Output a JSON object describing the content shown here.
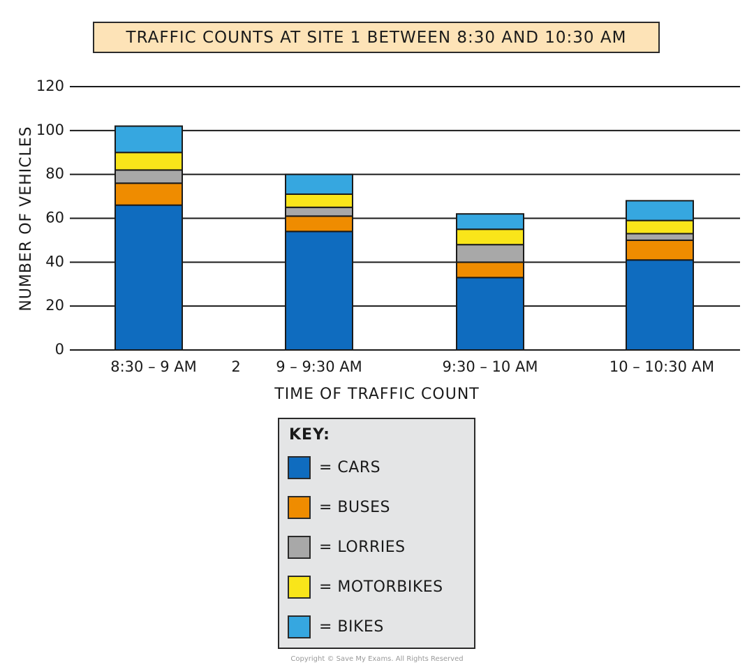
{
  "chart_data": {
    "type": "bar",
    "stacked": true,
    "title": "TRAFFIC COUNTS AT SITE 1 BETWEEN 8:30 AND 10:30 AM",
    "xlabel": "TIME OF TRAFFIC COUNT",
    "ylabel": "NUMBER OF VEHICLES",
    "ylim": [
      0,
      120
    ],
    "yticks": [
      0,
      20,
      40,
      60,
      80,
      100,
      120
    ],
    "grid": true,
    "categories": [
      "8:30 – 9 AM",
      "9 – 9:30 AM",
      "9:30 – 10 AM",
      "10 – 10:30 AM"
    ],
    "stray_tick_text": "2",
    "series": [
      {
        "name": "CARS",
        "color": "#0f6cbf",
        "values": [
          66,
          54,
          33,
          41
        ]
      },
      {
        "name": "BUSES",
        "color": "#ef8c00",
        "values": [
          10,
          7,
          7,
          9
        ]
      },
      {
        "name": "LORRIES",
        "color": "#a8a8a8",
        "values": [
          6,
          4,
          8,
          3
        ]
      },
      {
        "name": "MOTORBIKES",
        "color": "#f9e51a",
        "values": [
          8,
          6,
          7,
          6
        ]
      },
      {
        "name": "BIKES",
        "color": "#36a7e0",
        "values": [
          12,
          9,
          7,
          9
        ]
      }
    ],
    "legend": {
      "title": "KEY:",
      "placement": "bottom-center",
      "entries": [
        "= CARS",
        "= BUSES",
        "= LORRIES",
        "= MOTORBIKES",
        "= BIKES"
      ]
    }
  },
  "copyright": "Copyright © Save My Exams. All Rights Reserved"
}
